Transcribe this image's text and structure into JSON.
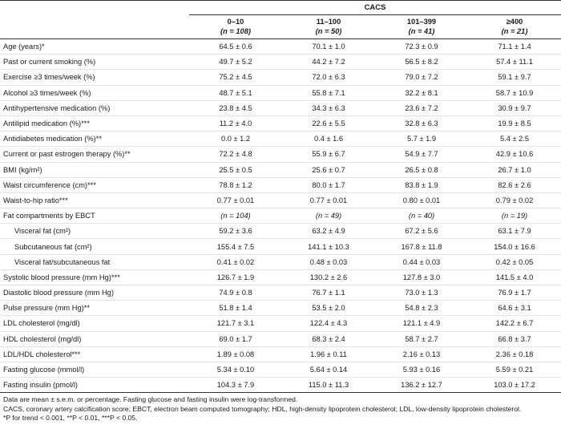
{
  "header": {
    "group_label": "CACS",
    "columns": [
      {
        "range": "0–10",
        "n": "(n = 108)"
      },
      {
        "range": "11–100",
        "n": "(n = 50)"
      },
      {
        "range": "101–399",
        "n": "(n = 41)"
      },
      {
        "range": "≥400",
        "n": "(n = 21)"
      }
    ]
  },
  "rows": [
    {
      "label": "Age (years)*",
      "values": [
        "64.5 ± 0.6",
        "70.1 ± 1.0",
        "72.3 ± 0.9",
        "71.1 ± 1.4"
      ]
    },
    {
      "label": "Past or current smoking (%)",
      "values": [
        "49.7 ± 5.2",
        "44.2 ± 7.2",
        "56.5 ± 8.2",
        "57.4 ± 11.1"
      ]
    },
    {
      "label": "Exercise ≥3 times/week (%)",
      "values": [
        "75.2 ± 4.5",
        "72.0 ± 6.3",
        "79.0 ± 7.2",
        "59.1 ± 9.7"
      ]
    },
    {
      "label": "Alcohol ≥3 times/week (%)",
      "values": [
        "48.7 ± 5.1",
        "55.8 ± 7.1",
        "32.2 ± 8.1",
        "58.7 ± 10.9"
      ]
    },
    {
      "label": "Antihypertensive medication (%)",
      "values": [
        "23.8 ± 4.5",
        "34.3 ± 6.3",
        "23.6 ± 7.2",
        "30.9 ± 9.7"
      ]
    },
    {
      "label": "Antilipid medication (%)***",
      "values": [
        "11.2 ± 4.0",
        "22.6 ± 5.5",
        "32.8 ± 6.3",
        "19.9 ± 8.5"
      ]
    },
    {
      "label": "Antidiabetes medication (%)**",
      "values": [
        "0.0 ± 1.2",
        "0.4 ± 1.6",
        "5.7 ± 1.9",
        "5.4 ± 2.5"
      ]
    },
    {
      "label": "Current or past estrogen therapy (%)**",
      "values": [
        "72.2 ± 4.8",
        "55.9 ± 6.7",
        "54.9 ± 7.7",
        "42.9 ± 10.6"
      ]
    },
    {
      "label": "BMI (kg/m²)",
      "values": [
        "25.5 ± 0.5",
        "25.6 ± 0.7",
        "26.5 ± 0.8",
        "26.7 ± 1.0"
      ]
    },
    {
      "label": "Waist circumference (cm)***",
      "values": [
        "78.8 ± 1.2",
        "80.0 ± 1.7",
        "83.8 ± 1.9",
        "82.6 ± 2.6"
      ]
    },
    {
      "label": "Waist-to-hip ratio***",
      "values": [
        "0.77 ± 0.01",
        "0.77 ± 0.01",
        "0.80 ± 0.01",
        "0.79 ± 0.02"
      ]
    },
    {
      "label": "Fat compartments by EBCT",
      "values": [
        "(n = 104)",
        "(n = 49)",
        "(n = 40)",
        "(n = 19)"
      ],
      "italic": true
    },
    {
      "label": "Visceral fat (cm²)",
      "values": [
        "59.2 ± 3.6",
        "63.2 ± 4.9",
        "67.2 ± 5.6",
        "63.1 ± 7.9"
      ],
      "indent": true
    },
    {
      "label": "Subcutaneous fat (cm²)",
      "values": [
        "155.4 ± 7.5",
        "141.1 ± 10.3",
        "167.8 ± 11.8",
        "154.0 ± 16.6"
      ],
      "indent": true
    },
    {
      "label": "Visceral fat/subcutaneous fat",
      "values": [
        "0.41 ± 0.02",
        "0.48 ± 0.03",
        "0.44 ± 0.03",
        "0.42 ± 0.05"
      ],
      "indent": true
    },
    {
      "label": "Systolic blood pressure (mm Hg)***",
      "values": [
        "126.7 ± 1.9",
        "130.2 ± 2.6",
        "127.8 ± 3.0",
        "141.5 ± 4.0"
      ]
    },
    {
      "label": "Diastolic blood pressure (mm Hg)",
      "values": [
        "74.9 ± 0.8",
        "76.7 ± 1.1",
        "73.0 ± 1.3",
        "76.9 ± 1.7"
      ]
    },
    {
      "label": "Pulse pressure (mm Hg)**",
      "values": [
        "51.8 ± 1.4",
        "53.5 ± 2.0",
        "54.8 ± 2.3",
        "64.6 ± 3.1"
      ]
    },
    {
      "label": "LDL cholesterol (mg/dl)",
      "values": [
        "121.7 ± 3.1",
        "122.4 ± 4.3",
        "121.1 ± 4.9",
        "142.2 ± 6.7"
      ]
    },
    {
      "label": "HDL cholesterol (mg/dl)",
      "values": [
        "69.0 ± 1.7",
        "68.3 ± 2.4",
        "58.7 ± 2.7",
        "66.8 ± 3.7"
      ]
    },
    {
      "label": "LDL/HDL cholesterol***",
      "values": [
        "1.89 ± 0.08",
        "1.96 ± 0.11",
        "2.16 ± 0.13",
        "2.36 ± 0.18"
      ]
    },
    {
      "label": "Fasting glucose (mmol/l)",
      "values": [
        "5.34 ± 0.10",
        "5.64 ± 0.14",
        "5.93 ± 0.16",
        "5.59 ± 0.21"
      ]
    },
    {
      "label": "Fasting insulin (pmol/l)",
      "values": [
        "104.3 ± 7.9",
        "115.0 ± 11.3",
        "136.2 ± 12.7",
        "103.0 ± 17.2"
      ]
    }
  ],
  "notes": {
    "line1": "Data are mean ± s.e.m. or percentage. Fasting glucose and fasting insulin were log-transformed.",
    "line2": "CACS, coronary artery calcification score; EBCT, electron beam computed tomography; HDL, high-density lipoprotein cholesterol; LDL, low-density lipoprotein cholesterol.",
    "line3": "*P for trend < 0.001, **P < 0.01, ***P < 0.05."
  }
}
